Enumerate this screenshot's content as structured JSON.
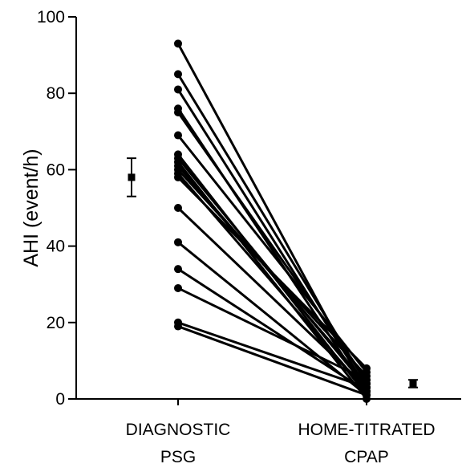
{
  "chart_data": {
    "type": "scatter",
    "ylabel": "AHI (event/h)",
    "xlabel": "",
    "title": "",
    "ylim": [
      0,
      100
    ],
    "yticks": [
      0,
      20,
      40,
      60,
      80,
      100
    ],
    "ytick_labels": [
      "0",
      "20",
      "40",
      "60",
      "80",
      "100"
    ],
    "categories": [
      [
        "DIAGNOSTIC",
        "PSG"
      ],
      [
        "HOME-TITRATED",
        "CPAP"
      ]
    ],
    "grid": false,
    "paired_values": [
      [
        93,
        2
      ],
      [
        85,
        4
      ],
      [
        81,
        3
      ],
      [
        76,
        2
      ],
      [
        75,
        5
      ],
      [
        69,
        7
      ],
      [
        64,
        1
      ],
      [
        63,
        3
      ],
      [
        62,
        0
      ],
      [
        61,
        4
      ],
      [
        60,
        6
      ],
      [
        59,
        2
      ],
      [
        58,
        8
      ],
      [
        50,
        3
      ],
      [
        41,
        1
      ],
      [
        34,
        2
      ],
      [
        29,
        5
      ],
      [
        20,
        3
      ],
      [
        19,
        1
      ]
    ],
    "summary": [
      {
        "category": "DIAGNOSTIC PSG",
        "mean": 58,
        "lower": 53,
        "upper": 63
      },
      {
        "category": "HOME-TITRATED CPAP",
        "mean": 4,
        "lower": 3,
        "upper": 5
      }
    ],
    "colors": {
      "lines": "#000000",
      "points": "#000000"
    }
  }
}
